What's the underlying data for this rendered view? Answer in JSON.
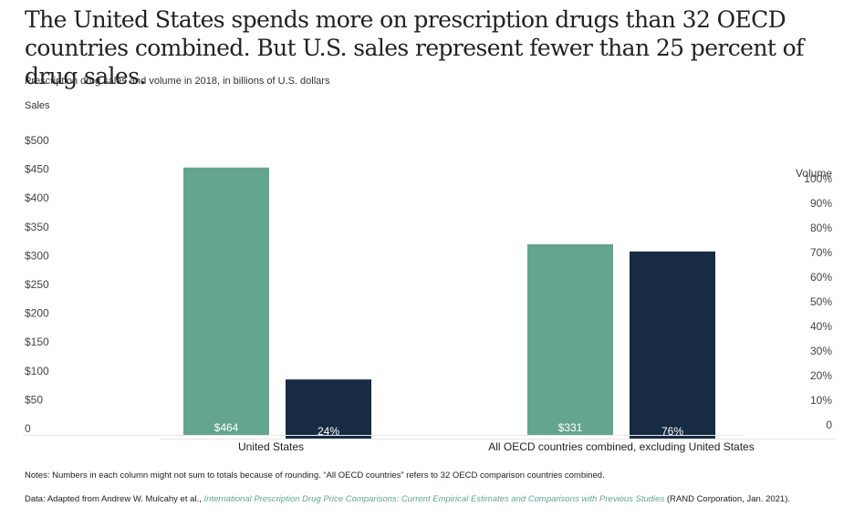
{
  "chart_data": {
    "type": "bar",
    "title": "The United States spends more on prescription drugs than 32 OECD countries combined. But U.S. sales represent fewer than 25 percent of drug sales.",
    "subtitle": "Prescription drug sales and volume in 2018, in billions of U.S. dollars",
    "ylabel": "Sales",
    "y2label": "Volume",
    "categories": [
      "United States",
      "All OECD countries combined, excluding United States"
    ],
    "series": [
      {
        "name": "Sales",
        "axis": "left",
        "color": "#64a58f",
        "values": [
          464,
          331
        ],
        "labels": [
          "$464",
          "$331"
        ]
      },
      {
        "name": "Volume",
        "axis": "right",
        "color": "#172b43",
        "values": [
          24,
          76
        ],
        "labels": [
          "24%",
          "76%"
        ]
      }
    ],
    "ylim": [
      0,
      500
    ],
    "y_ticks": [
      0,
      50,
      100,
      150,
      200,
      250,
      300,
      350,
      400,
      450,
      500
    ],
    "y_tick_labels": [
      "0",
      "$50",
      "$100",
      "$150",
      "$200",
      "$250",
      "$300",
      "$350",
      "$400",
      "$450",
      "$500"
    ],
    "y2lim": [
      0,
      100
    ],
    "y2_ticks": [
      0,
      10,
      20,
      30,
      40,
      50,
      60,
      70,
      80,
      90,
      100
    ],
    "y2_tick_labels": [
      "0",
      "10%",
      "20%",
      "30%",
      "40%",
      "50%",
      "60%",
      "70%",
      "80%",
      "90%",
      "100%"
    ],
    "grid": false,
    "legend": "none"
  },
  "notes": "Notes: Numbers in each column might not sum to totals because of rounding. “All OECD countries” refers to 32 OECD comparison countries combined.",
  "source": {
    "prefix": "Data: Adapted from Andrew W. Mulcahy et al., ",
    "link_text": "International Prescription Drug Price Comparisons: Current Empirical Estimates and Comparisons with Previous Studies",
    "suffix": " (RAND Corporation, Jan. 2021)."
  }
}
